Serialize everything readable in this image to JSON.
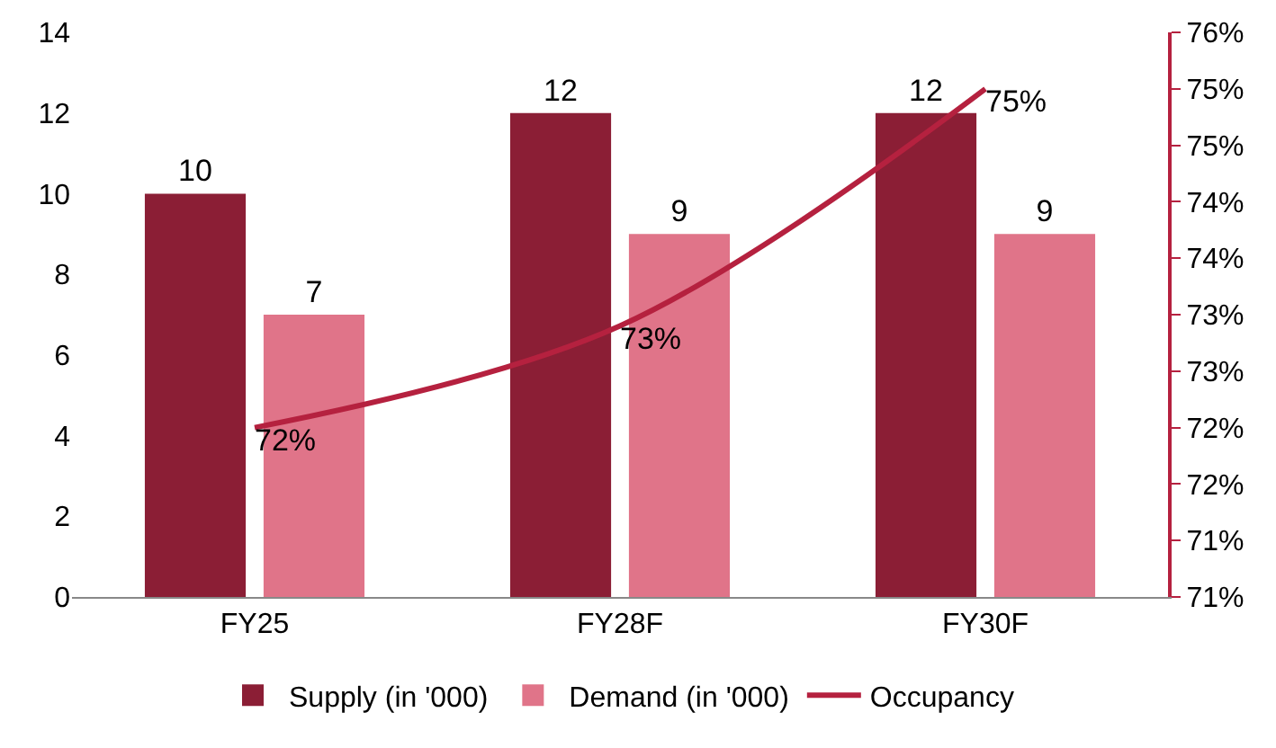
{
  "chart_data": {
    "type": "bar",
    "categories": [
      "FY25",
      "FY28F",
      "FY30F"
    ],
    "series": [
      {
        "name": "Supply (in '000)",
        "color": "#8b1e35",
        "values": [
          10,
          12,
          12
        ]
      },
      {
        "name": "Demand (in '000)",
        "color": "#e07489",
        "values": [
          7,
          9,
          9
        ]
      },
      {
        "name": "Occupancy",
        "type": "line",
        "axis": "y2",
        "color": "#b5213f",
        "values": [
          72.5,
          73.4,
          75.5
        ],
        "value_labels": [
          "72%",
          "73%",
          "75%"
        ]
      }
    ],
    "data_labels": true,
    "ylim": [
      0,
      14
    ],
    "yticks": [
      0,
      2,
      4,
      6,
      8,
      10,
      12,
      14
    ],
    "y2lim": [
      71,
      76
    ],
    "y2ticks": [
      {
        "value": 71,
        "label": "71%"
      },
      {
        "value": 71.5,
        "label": "71%"
      },
      {
        "value": 72,
        "label": "72%"
      },
      {
        "value": 72.5,
        "label": "72%"
      },
      {
        "value": 73,
        "label": "73%"
      },
      {
        "value": 73.5,
        "label": "73%"
      },
      {
        "value": 74,
        "label": "74%"
      },
      {
        "value": 74.5,
        "label": "74%"
      },
      {
        "value": 75,
        "label": "75%"
      },
      {
        "value": 75.5,
        "label": "75%"
      },
      {
        "value": 76,
        "label": "76%"
      }
    ],
    "grid": false,
    "legend": "bottom",
    "marker": "none",
    "line_style": "solid"
  }
}
